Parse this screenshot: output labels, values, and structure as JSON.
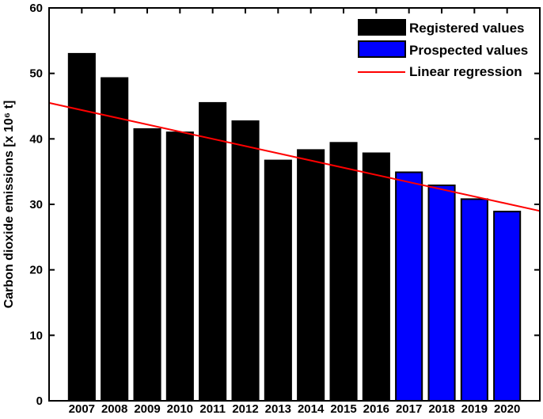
{
  "figure": {
    "background_color": "#ffffff",
    "axis_color": "#000000"
  },
  "chart_data": {
    "type": "bar",
    "title": "",
    "xlabel": "",
    "ylabel": "Carbon dioxide emissions [x 10⁶ t]",
    "categories": [
      "2007",
      "2008",
      "2009",
      "2010",
      "2011",
      "2012",
      "2013",
      "2014",
      "2015",
      "2016",
      "2017",
      "2018",
      "2019",
      "2020"
    ],
    "series": [
      {
        "name": "Registered values",
        "color": "#000000",
        "values": [
          53.0,
          49.3,
          41.5,
          41.0,
          45.5,
          42.7,
          36.7,
          38.3,
          39.4,
          37.8,
          null,
          null,
          null,
          null
        ]
      },
      {
        "name": "Prospected values",
        "color": "#0000ff",
        "values": [
          null,
          null,
          null,
          null,
          null,
          null,
          null,
          null,
          null,
          null,
          34.9,
          32.9,
          30.8,
          28.9
        ]
      }
    ],
    "regression_line": {
      "name": "Linear regression",
      "color": "#ff0000",
      "x_start": 2006,
      "y_start": 45.5,
      "x_end": 2021,
      "y_end": 29.0
    },
    "xlim": [
      2006,
      2021
    ],
    "ylim": [
      0,
      60
    ],
    "yticks": [
      0,
      10,
      20,
      30,
      40,
      50,
      60
    ],
    "bar_width_units": 0.8,
    "bar_edge_color": "#000000",
    "grid": false,
    "legend_position": "top-right",
    "legend": [
      "Registered values",
      "Prospected values",
      "Linear regression"
    ]
  }
}
